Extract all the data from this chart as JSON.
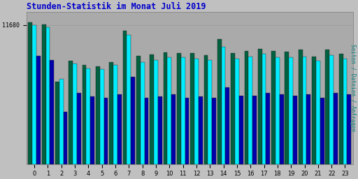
{
  "title": "Stunden-Statistik im Monat Juli 2019",
  "ylabel_right": "Seiten / Dateien / Anfragen",
  "categories": [
    0,
    1,
    2,
    3,
    4,
    5,
    6,
    7,
    8,
    9,
    10,
    11,
    12,
    13,
    14,
    15,
    16,
    17,
    18,
    19,
    20,
    21,
    22,
    23
  ],
  "ytick_label": "11680",
  "ytick_value": 11680,
  "bar_groups": {
    "seiten": [
      11900,
      11750,
      6900,
      8700,
      8300,
      8200,
      8550,
      11200,
      9100,
      9200,
      9400,
      9350,
      9300,
      9150,
      10500,
      9350,
      9500,
      9650,
      9500,
      9450,
      9600,
      9050,
      9600,
      9250
    ],
    "dateien": [
      11700,
      11500,
      7150,
      8450,
      8050,
      8000,
      8350,
      10850,
      8550,
      8750,
      8950,
      8950,
      8850,
      8750,
      9850,
      8850,
      9050,
      9250,
      8950,
      8950,
      9050,
      8650,
      9150,
      8850
    ],
    "anfragen": [
      9100,
      8750,
      4400,
      6000,
      5650,
      5550,
      5850,
      7350,
      5550,
      5650,
      5850,
      5550,
      5650,
      5550,
      6450,
      5750,
      5750,
      5950,
      5850,
      5750,
      5850,
      5550,
      5950,
      5850
    ]
  },
  "colors": {
    "seiten": "#006040",
    "dateien": "#00EEFF",
    "anfragen": "#0000AA"
  },
  "background_color": "#C0C0C0",
  "plot_bg_color": "#AAAAAA",
  "title_color": "#0000CC",
  "bar_width": 0.3,
  "ylim_max": 12800,
  "figsize": [
    5.12,
    2.56
  ],
  "dpi": 100
}
